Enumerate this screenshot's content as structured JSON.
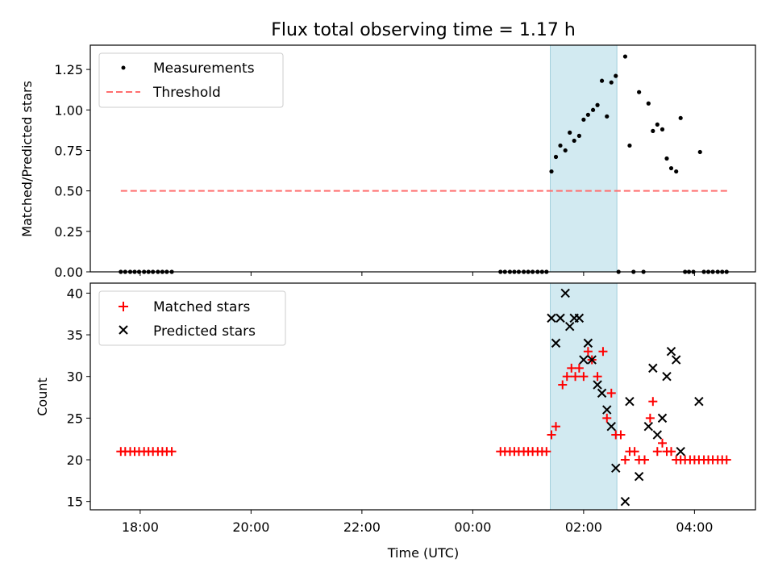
{
  "figure": {
    "title": "Flux total observing time = 1.17 h",
    "xlabel": "Time (UTC)",
    "highlight_color": "#add8e6",
    "threshold_color": "#ff6f6f"
  },
  "chart_data": [
    {
      "type": "scatter",
      "ylabel": "Matched/Predicted stars",
      "xlim": [
        17.1,
        29.1
      ],
      "ylim": [
        0,
        1.4
      ],
      "yticks": [
        0,
        0.25,
        0.5,
        0.75,
        1.0,
        1.25
      ],
      "ytick_labels": [
        "0.00",
        "0.25",
        "0.50",
        "0.75",
        "1.00",
        "1.25"
      ],
      "highlight_span": [
        25.4,
        26.6
      ],
      "legend": {
        "placement": "top-left",
        "entries": [
          "Measurements",
          "Threshold"
        ]
      },
      "threshold": {
        "name": "Threshold",
        "y": 0.5,
        "x_range": [
          17.65,
          28.6
        ]
      },
      "series": [
        {
          "name": "Measurements",
          "marker": "dot",
          "color": "#000000",
          "points": [
            [
              17.65,
              0
            ],
            [
              17.73,
              0
            ],
            [
              17.82,
              0
            ],
            [
              17.9,
              0
            ],
            [
              17.98,
              0
            ],
            [
              18.07,
              0
            ],
            [
              18.15,
              0
            ],
            [
              18.23,
              0
            ],
            [
              18.32,
              0
            ],
            [
              18.4,
              0
            ],
            [
              18.48,
              0
            ],
            [
              18.57,
              0
            ],
            [
              24.5,
              0
            ],
            [
              24.58,
              0
            ],
            [
              24.67,
              0
            ],
            [
              24.75,
              0
            ],
            [
              24.83,
              0
            ],
            [
              24.92,
              0
            ],
            [
              25.0,
              0
            ],
            [
              25.08,
              0
            ],
            [
              25.17,
              0
            ],
            [
              25.25,
              0
            ],
            [
              25.33,
              0
            ],
            [
              25.42,
              0.62
            ],
            [
              25.5,
              0.71
            ],
            [
              25.58,
              0.78
            ],
            [
              25.67,
              0.75
            ],
            [
              25.75,
              0.86
            ],
            [
              25.83,
              0.81
            ],
            [
              25.92,
              0.84
            ],
            [
              26.0,
              0.94
            ],
            [
              26.08,
              0.97
            ],
            [
              26.17,
              1.0
            ],
            [
              26.25,
              1.03
            ],
            [
              26.33,
              1.18
            ],
            [
              26.42,
              0.96
            ],
            [
              26.5,
              1.17
            ],
            [
              26.58,
              1.21
            ],
            [
              26.63,
              0
            ],
            [
              26.75,
              1.33
            ],
            [
              26.83,
              0.78
            ],
            [
              26.9,
              0
            ],
            [
              27.0,
              1.11
            ],
            [
              27.08,
              0
            ],
            [
              27.17,
              1.04
            ],
            [
              27.25,
              0.87
            ],
            [
              27.33,
              0.91
            ],
            [
              27.42,
              0.88
            ],
            [
              27.5,
              0.7
            ],
            [
              27.58,
              0.64
            ],
            [
              27.67,
              0.62
            ],
            [
              27.75,
              0.95
            ],
            [
              27.83,
              0
            ],
            [
              27.9,
              0
            ],
            [
              27.98,
              0
            ],
            [
              28.1,
              0.74
            ],
            [
              28.17,
              0
            ],
            [
              28.25,
              0
            ],
            [
              28.33,
              0
            ],
            [
              28.42,
              0
            ],
            [
              28.5,
              0
            ],
            [
              28.58,
              0
            ]
          ]
        }
      ]
    },
    {
      "type": "scatter",
      "ylabel": "Count",
      "xlim": [
        17.1,
        29.1
      ],
      "ylim": [
        14,
        41.2
      ],
      "yticks": [
        15,
        20,
        25,
        30,
        35,
        40
      ],
      "ytick_labels": [
        "15",
        "20",
        "25",
        "30",
        "35",
        "40"
      ],
      "xticks": [
        18,
        20,
        22,
        24,
        26,
        28
      ],
      "xtick_labels": [
        "18:00",
        "20:00",
        "22:00",
        "00:00",
        "02:00",
        "04:00"
      ],
      "highlight_span": [
        25.4,
        26.6
      ],
      "legend": {
        "placement": "top-left",
        "entries": [
          "Matched stars",
          "Predicted stars"
        ]
      },
      "series": [
        {
          "name": "Matched stars",
          "marker": "plus",
          "color": "#ff0000",
          "points": [
            [
              17.65,
              21
            ],
            [
              17.73,
              21
            ],
            [
              17.82,
              21
            ],
            [
              17.9,
              21
            ],
            [
              17.98,
              21
            ],
            [
              18.07,
              21
            ],
            [
              18.15,
              21
            ],
            [
              18.23,
              21
            ],
            [
              18.32,
              21
            ],
            [
              18.4,
              21
            ],
            [
              18.48,
              21
            ],
            [
              18.57,
              21
            ],
            [
              24.5,
              21
            ],
            [
              24.58,
              21
            ],
            [
              24.67,
              21
            ],
            [
              24.75,
              21
            ],
            [
              24.83,
              21
            ],
            [
              24.92,
              21
            ],
            [
              25.0,
              21
            ],
            [
              25.08,
              21
            ],
            [
              25.17,
              21
            ],
            [
              25.25,
              21
            ],
            [
              25.33,
              21
            ],
            [
              25.42,
              23
            ],
            [
              25.5,
              24
            ],
            [
              25.62,
              29
            ],
            [
              25.7,
              30
            ],
            [
              25.78,
              31
            ],
            [
              25.85,
              30
            ],
            [
              25.92,
              31
            ],
            [
              26.0,
              30
            ],
            [
              26.08,
              33
            ],
            [
              26.15,
              32
            ],
            [
              26.25,
              30
            ],
            [
              26.35,
              33
            ],
            [
              26.42,
              25
            ],
            [
              26.5,
              28
            ],
            [
              26.58,
              23
            ],
            [
              26.67,
              23
            ],
            [
              26.75,
              20
            ],
            [
              26.83,
              21
            ],
            [
              26.92,
              21
            ],
            [
              27.0,
              20
            ],
            [
              27.1,
              20
            ],
            [
              27.2,
              25
            ],
            [
              27.25,
              27
            ],
            [
              27.33,
              21
            ],
            [
              27.42,
              22
            ],
            [
              27.5,
              21
            ],
            [
              27.58,
              21
            ],
            [
              27.67,
              20
            ],
            [
              27.75,
              20
            ],
            [
              27.83,
              20
            ],
            [
              27.92,
              20
            ],
            [
              28.0,
              20
            ],
            [
              28.08,
              20
            ],
            [
              28.17,
              20
            ],
            [
              28.25,
              20
            ],
            [
              28.33,
              20
            ],
            [
              28.42,
              20
            ],
            [
              28.5,
              20
            ],
            [
              28.58,
              20
            ]
          ]
        },
        {
          "name": "Predicted stars",
          "marker": "x",
          "color": "#000000",
          "points": [
            [
              25.42,
              37
            ],
            [
              25.5,
              34
            ],
            [
              25.58,
              37
            ],
            [
              25.67,
              40
            ],
            [
              25.75,
              36
            ],
            [
              25.83,
              37
            ],
            [
              25.92,
              37
            ],
            [
              26.0,
              32
            ],
            [
              26.08,
              34
            ],
            [
              26.15,
              32
            ],
            [
              26.25,
              29
            ],
            [
              26.33,
              28
            ],
            [
              26.42,
              26
            ],
            [
              26.5,
              24
            ],
            [
              26.58,
              19
            ],
            [
              26.75,
              15
            ],
            [
              26.83,
              27
            ],
            [
              27.0,
              18
            ],
            [
              27.17,
              24
            ],
            [
              27.25,
              31
            ],
            [
              27.33,
              23
            ],
            [
              27.42,
              25
            ],
            [
              27.5,
              30
            ],
            [
              27.58,
              33
            ],
            [
              27.67,
              32
            ],
            [
              27.75,
              21
            ],
            [
              28.08,
              27
            ]
          ]
        }
      ]
    }
  ]
}
